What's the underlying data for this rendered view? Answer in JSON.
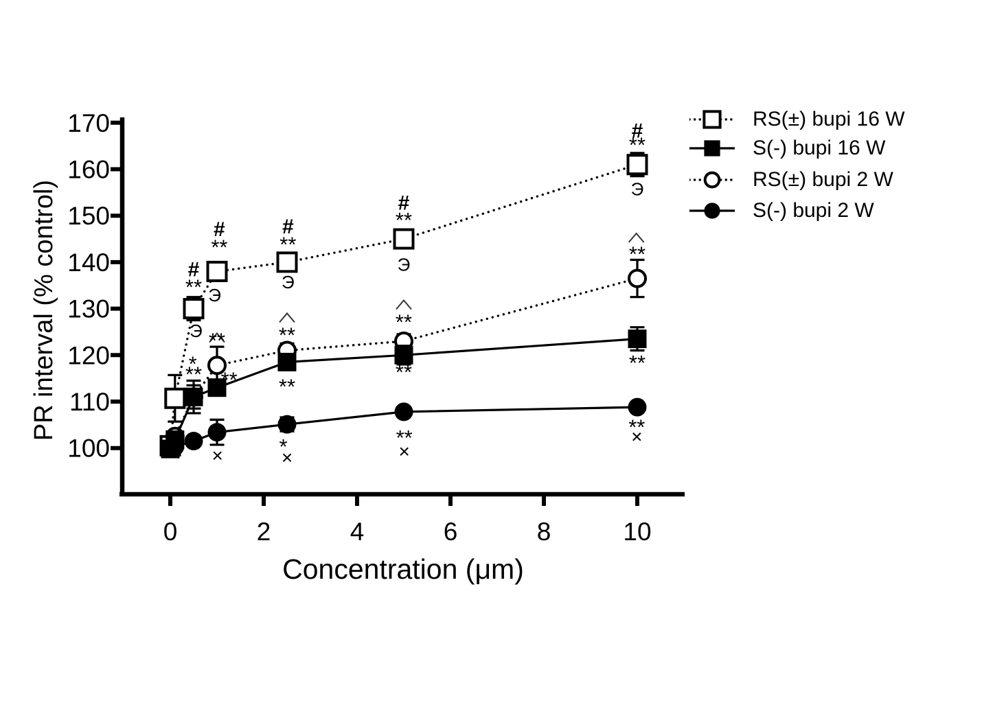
{
  "figure": {
    "background": "#ffffff",
    "ink_color": "#000000"
  },
  "chart_data": {
    "type": "line",
    "title": "",
    "xlabel": "Concentration (μm)",
    "ylabel": "PR interval (% control)",
    "x_ticks": [
      0,
      2,
      4,
      6,
      8,
      10
    ],
    "y_ticks": [
      100,
      110,
      120,
      130,
      140,
      150,
      160,
      170
    ],
    "xlim": [
      -1.1,
      11
    ],
    "ylim": [
      92,
      171
    ],
    "grid": false,
    "legend_position": "top-right",
    "x": [
      0,
      0.1,
      0.5,
      1,
      2.5,
      5,
      10
    ],
    "series": [
      {
        "name": "RS(±) bupi 16 W",
        "marker": "square-open",
        "line": "dotted",
        "values": [
          100.5,
          110.7,
          130,
          138,
          140,
          145,
          161
        ],
        "errors": [
          0,
          5,
          2.5,
          2,
          1.5,
          2,
          2.5
        ],
        "annotations": [
          {
            "x": 0.5,
            "y": 138.6,
            "text": "#",
            "kind": "hash"
          },
          {
            "x": 0.5,
            "y": 135.3,
            "text": "**",
            "kind": "stars"
          },
          {
            "x": 0.55,
            "y": 125.2,
            "text": "Э",
            "kind": "member"
          },
          {
            "x": 1.05,
            "y": 147.2,
            "text": "#",
            "kind": "hash"
          },
          {
            "x": 1.05,
            "y": 143.9,
            "text": "**",
            "kind": "stars"
          },
          {
            "x": 0.95,
            "y": 132.9,
            "text": "Э",
            "kind": "member"
          },
          {
            "x": 2.52,
            "y": 147.8,
            "text": "#",
            "kind": "hash"
          },
          {
            "x": 2.52,
            "y": 144.5,
            "text": "**",
            "kind": "stars"
          },
          {
            "x": 2.52,
            "y": 135.7,
            "text": "Э",
            "kind": "member"
          },
          {
            "x": 5.0,
            "y": 152.9,
            "text": "#",
            "kind": "hash"
          },
          {
            "x": 5.0,
            "y": 149.7,
            "text": "**",
            "kind": "stars"
          },
          {
            "x": 5.0,
            "y": 139.5,
            "text": "Э",
            "kind": "member"
          },
          {
            "x": 10.0,
            "y": 168.4,
            "text": "#",
            "kind": "hash"
          },
          {
            "x": 10.0,
            "y": 165.9,
            "text": "**",
            "kind": "stars"
          },
          {
            "x": 10.0,
            "y": 155.7,
            "text": "Э",
            "kind": "member"
          }
        ]
      },
      {
        "name": "RS(±) bupi 2 W",
        "marker": "circle-open",
        "line": "dotted",
        "values": [
          100,
          102.5,
          111,
          117.8,
          121,
          123,
          136.5
        ],
        "errors": [
          0,
          0,
          2.5,
          4,
          1.5,
          1.5,
          4
        ],
        "annotations": [
          {
            "x": 1.0,
            "y": 123.8,
            "text": "∧",
            "kind": "caret"
          },
          {
            "x": 1.0,
            "y": 123.8,
            "text": "**",
            "kind": "stars"
          },
          {
            "x": 2.5,
            "y": 128.1,
            "text": "∧",
            "kind": "caret"
          },
          {
            "x": 2.5,
            "y": 125.0,
            "text": "**",
            "kind": "stars"
          },
          {
            "x": 5.0,
            "y": 130.9,
            "text": "∧",
            "kind": "caret"
          },
          {
            "x": 5.0,
            "y": 127.8,
            "text": "**",
            "kind": "stars"
          },
          {
            "x": 9.98,
            "y": 145.3,
            "text": "∧",
            "kind": "caret"
          },
          {
            "x": 10.0,
            "y": 142.4,
            "text": "**",
            "kind": "stars"
          }
        ]
      },
      {
        "name": "S(-) bupi 16 W",
        "marker": "square-filled",
        "line": "solid",
        "values": [
          99.8,
          101.8,
          111,
          113,
          118.5,
          120,
          123.5
        ],
        "errors": [
          1,
          1.2,
          3.5,
          1.5,
          1.5,
          2,
          2.5
        ],
        "annotations": [
          {
            "x": 0.48,
            "y": 118.8,
            "text": "*",
            "kind": "stars"
          },
          {
            "x": 0.5,
            "y": 116.6,
            "text": "**",
            "kind": "stars"
          },
          {
            "x": 1.26,
            "y": 115.4,
            "text": "**",
            "kind": "stars"
          },
          {
            "x": 2.5,
            "y": 113.9,
            "text": "**",
            "kind": "stars"
          },
          {
            "x": 5.0,
            "y": 117.0,
            "text": "**",
            "kind": "stars"
          },
          {
            "x": 10.0,
            "y": 119.0,
            "text": "**",
            "kind": "stars"
          }
        ]
      },
      {
        "name": "S(-) bupi 2 W",
        "marker": "circle-filled",
        "line": "solid",
        "values": [
          100,
          100.3,
          101.5,
          103.4,
          105.1,
          107.8,
          108.8
        ],
        "errors": [
          0,
          0,
          1,
          2.7,
          1.5,
          1,
          1
        ],
        "annotations": [
          {
            "x": 1.01,
            "y": 98.3,
            "text": "×",
            "kind": "cross"
          },
          {
            "x": 2.42,
            "y": 101.0,
            "text": "*",
            "kind": "stars"
          },
          {
            "x": 2.5,
            "y": 97.9,
            "text": "×",
            "kind": "cross"
          },
          {
            "x": 5.01,
            "y": 102.9,
            "text": "**",
            "kind": "stars"
          },
          {
            "x": 5.01,
            "y": 99.2,
            "text": "×",
            "kind": "cross"
          },
          {
            "x": 9.99,
            "y": 105.2,
            "text": "**",
            "kind": "stars"
          },
          {
            "x": 9.99,
            "y": 102.4,
            "text": "×",
            "kind": "cross"
          }
        ]
      }
    ]
  },
  "legend": {
    "items": [
      {
        "label": "RS(±) bupi 16 W",
        "marker": "square-open",
        "line": "dotted"
      },
      {
        "label": "S(-) bupi 16 W",
        "marker": "square-filled",
        "line": "solid"
      },
      {
        "label": "RS(±) bupi 2 W",
        "marker": "circle-open",
        "line": "dotted"
      },
      {
        "label": "S(-) bupi 2 W",
        "marker": "circle-filled",
        "line": "solid"
      }
    ]
  }
}
